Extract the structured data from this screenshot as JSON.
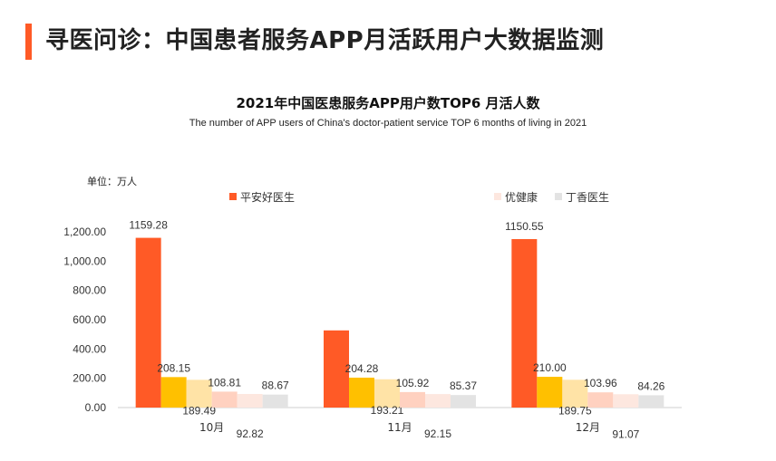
{
  "page": {
    "title": "寻医问诊：中国患者服务APP月活跃用户大数据监测"
  },
  "chart_data": {
    "type": "bar",
    "title": "2021年中国医患服务APP用户数TOP6 月活人数",
    "subtitle": "The number of APP users of China's doctor-patient service TOP 6 months of living in 2021",
    "unit": "单位：万人",
    "categories": [
      "10月",
      "11月",
      "12月"
    ],
    "ylim": [
      0,
      1200
    ],
    "yticks": [
      "0.00",
      "200.00",
      "400.00",
      "600.00",
      "800.00",
      "1,000.00",
      "1,200.00"
    ],
    "series": [
      {
        "name": "平安好医生",
        "color": "#ff5a26",
        "values": [
          1159.28,
          527.0,
          1150.55
        ],
        "labels": [
          "1159.28",
          "",
          "1150.55"
        ]
      },
      {
        "name": "",
        "color": "#ffc000",
        "values": [
          208.15,
          204.28,
          210.0
        ],
        "labels": [
          "208.15",
          "204.28",
          "210.00"
        ]
      },
      {
        "name": "",
        "color": "#ffe3a6",
        "values": [
          189.49,
          193.21,
          189.75
        ],
        "labels": [
          "189.49",
          "193.21",
          "189.75"
        ]
      },
      {
        "name": "",
        "color": "#ffd1c0",
        "values": [
          108.81,
          105.92,
          103.96
        ],
        "labels": [
          "108.81",
          "105.92",
          "103.96"
        ]
      },
      {
        "name": "优健康",
        "color": "#fde7df",
        "values": [
          92.82,
          92.15,
          91.07
        ],
        "labels": [
          "92.82",
          "92.15",
          "91.07"
        ]
      },
      {
        "name": "丁香医生",
        "color": "#e3e3e3",
        "values": [
          88.67,
          85.37,
          84.26
        ],
        "labels": [
          "88.67",
          "85.37",
          "84.26"
        ]
      }
    ],
    "legend": [
      {
        "name": "平安好医生",
        "color": "#ff5a26"
      },
      {
        "name": "优健康",
        "color": "#fde7df"
      },
      {
        "name": "丁香医生",
        "color": "#e3e3e3"
      }
    ]
  }
}
